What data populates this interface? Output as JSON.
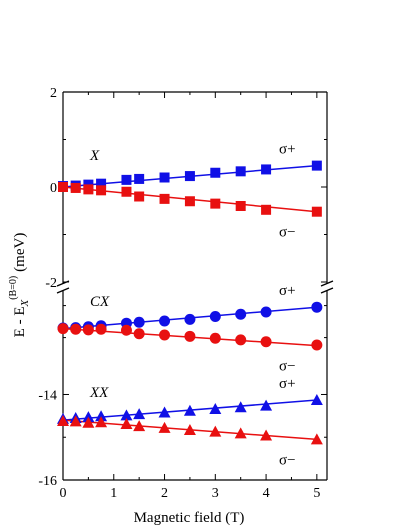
{
  "chart_data": {
    "type": "scatter",
    "xlabel": "Magnetic field (T)",
    "ylabel": {
      "prefix": "E - E",
      "subscript": "X",
      "superscript": "(B=0)",
      "unit": "(meV)"
    },
    "x_ticks": [
      "0",
      "1",
      "2",
      "3",
      "4",
      "5"
    ],
    "xlim": [
      0,
      5.2
    ],
    "broken_axis": true,
    "panels": [
      {
        "label": "X",
        "ylim": [
          -2,
          2
        ],
        "y_ticks": [
          "2",
          "0",
          "-2"
        ],
        "series": [
          {
            "name": "σ+",
            "color": "#1010e6",
            "marker": "square",
            "x": [
              0,
              0.25,
              0.5,
              0.75,
              1.25,
              1.5,
              2,
              2.5,
              3,
              3.5,
              4,
              5
            ],
            "y": [
              0.02,
              0.03,
              0.05,
              0.07,
              0.15,
              0.17,
              0.2,
              0.23,
              0.3,
              0.33,
              0.37,
              0.45
            ],
            "fit": [
              [
                0,
                0.0
              ],
              [
                5,
                0.45
              ]
            ]
          },
          {
            "name": "σ−",
            "color": "#e81010",
            "marker": "square",
            "x": [
              0,
              0.25,
              0.5,
              0.75,
              1.25,
              1.5,
              2,
              2.5,
              3,
              3.5,
              4,
              5
            ],
            "y": [
              0.0,
              -0.02,
              -0.05,
              -0.07,
              -0.1,
              -0.2,
              -0.25,
              -0.3,
              -0.35,
              -0.4,
              -0.48,
              -0.52
            ],
            "fit": [
              [
                0,
                0.0
              ],
              [
                5,
                -0.52
              ]
            ]
          }
        ]
      },
      {
        "label": "CX",
        "ylim": [
          -12.45,
          -10.45
        ],
        "y_ticks": [],
        "series": [
          {
            "name": "σ+",
            "color": "#1010e6",
            "marker": "circle",
            "x": [
              0,
              0.25,
              0.5,
              0.75,
              1.25,
              1.5,
              2,
              2.5,
              3,
              3.5,
              4,
              5
            ],
            "y": [
              -11.7,
              -11.69,
              -11.66,
              -11.63,
              -11.55,
              -11.52,
              -11.48,
              -11.43,
              -11.34,
              -11.27,
              -11.2,
              -11.05
            ],
            "fit": [
              [
                0,
                -11.72
              ],
              [
                5,
                -11.05
              ]
            ]
          },
          {
            "name": "σ−",
            "color": "#e81010",
            "marker": "circle",
            "x": [
              0,
              0.25,
              0.5,
              0.75,
              1.25,
              1.5,
              2,
              2.5,
              3,
              3.5,
              4,
              5
            ],
            "y": [
              -11.72,
              -11.74,
              -11.76,
              -11.74,
              -11.77,
              -11.88,
              -11.92,
              -11.96,
              -12.02,
              -12.07,
              -12.13,
              -12.23
            ],
            "fit": [
              [
                0,
                -11.72
              ],
              [
                5,
                -12.25
              ]
            ]
          }
        ]
      },
      {
        "label": "XX",
        "ylim": [
          -16,
          -13.1
        ],
        "y_ticks": [
          "-14",
          "-16"
        ],
        "series": [
          {
            "name": "σ+",
            "color": "#1010e6",
            "marker": "triangle",
            "x": [
              0,
              0.25,
              0.5,
              0.75,
              1.25,
              1.5,
              2,
              2.5,
              3,
              3.5,
              4,
              5
            ],
            "y": [
              -14.57,
              -14.55,
              -14.53,
              -14.51,
              -14.49,
              -14.46,
              -14.42,
              -14.38,
              -14.34,
              -14.3,
              -14.26,
              -14.13
            ],
            "fit": [
              [
                0,
                -14.6
              ],
              [
                5,
                -14.13
              ]
            ]
          },
          {
            "name": "σ−",
            "color": "#e81010",
            "marker": "triangle",
            "x": [
              0,
              0.25,
              0.5,
              0.75,
              1.25,
              1.5,
              2,
              2.5,
              3,
              3.5,
              4,
              5
            ],
            "y": [
              -14.62,
              -14.63,
              -14.66,
              -14.65,
              -14.69,
              -14.74,
              -14.78,
              -14.83,
              -14.87,
              -14.91,
              -14.96,
              -15.05
            ],
            "fit": [
              [
                0,
                -14.6
              ],
              [
                5,
                -15.05
              ]
            ]
          }
        ]
      }
    ]
  }
}
